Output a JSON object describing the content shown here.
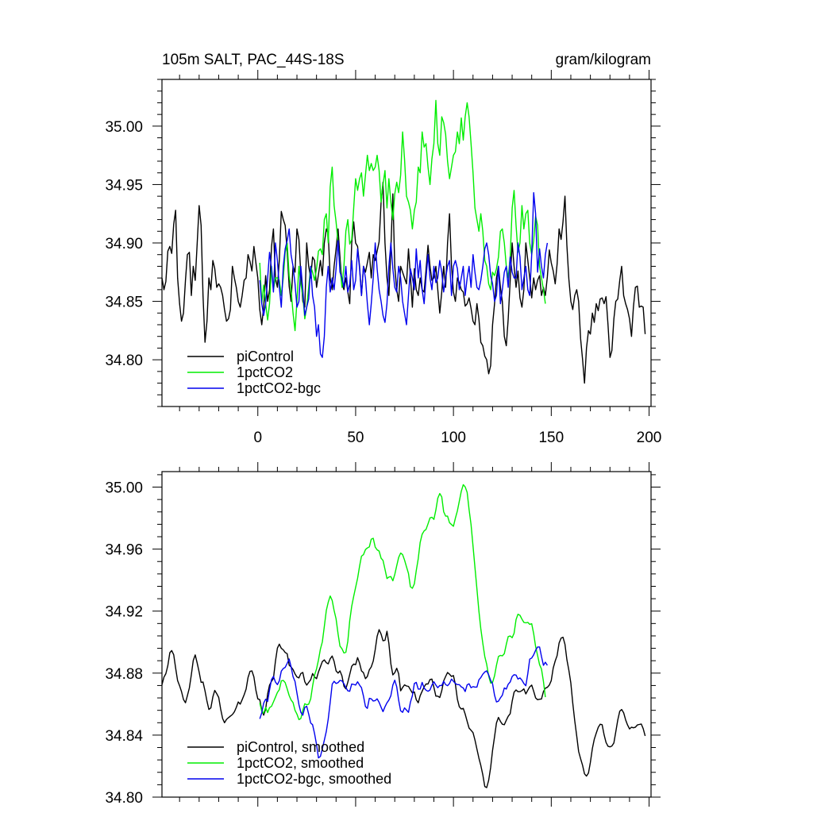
{
  "figure": {
    "title_left": "105m SALT, PAC_44S-18S",
    "title_right": "gram/kilogram"
  },
  "chart_data": [
    {
      "type": "line",
      "title": "105m SALT, PAC_44S-18S",
      "units": "gram/kilogram",
      "xlim": [
        -49,
        201
      ],
      "ylim": [
        34.76,
        35.04
      ],
      "xticks": [
        0,
        50,
        100,
        150,
        200
      ],
      "xtick_labels": [
        "0",
        "50",
        "100",
        "150",
        "200"
      ],
      "yticks": [
        34.8,
        34.85,
        34.9,
        34.95,
        35.0
      ],
      "ytick_labels": [
        "34.80",
        "34.85",
        "34.90",
        "34.95",
        "35.00"
      ],
      "grid": false,
      "legend": "bottom-left",
      "series": [
        {
          "name": "piControl",
          "color": "#000000",
          "x0": -49,
          "values": [
            34.87,
            34.86,
            34.867,
            34.893,
            34.897,
            34.891,
            34.916,
            34.928,
            34.87,
            34.848,
            34.833,
            34.84,
            34.868,
            34.89,
            34.892,
            34.855,
            34.88,
            34.868,
            34.9,
            34.932,
            34.915,
            34.855,
            34.815,
            34.833,
            34.87,
            34.86,
            34.885,
            34.878,
            34.862,
            34.865,
            34.862,
            34.855,
            34.843,
            34.833,
            34.835,
            34.843,
            34.88,
            34.87,
            34.862,
            34.85,
            34.845,
            34.855,
            34.868,
            34.87,
            34.89,
            34.884,
            34.876,
            34.897,
            34.883,
            34.87,
            34.843,
            34.83,
            34.845,
            34.872,
            34.85,
            34.86,
            34.897,
            34.912,
            34.87,
            34.862,
            34.885,
            34.927,
            34.92,
            34.915,
            34.893,
            34.863,
            34.85,
            34.88,
            34.875,
            34.912,
            34.903,
            34.873,
            34.85,
            34.845,
            34.9,
            34.88,
            34.87,
            34.888,
            34.885,
            34.862,
            34.873,
            34.885,
            34.872,
            34.9,
            34.912,
            34.908,
            34.87,
            34.86,
            34.88,
            34.895,
            34.912,
            34.888,
            34.865,
            34.86,
            34.87,
            34.858,
            34.848,
            34.9,
            34.918,
            34.9,
            34.897,
            34.88,
            34.855,
            34.88,
            34.875,
            34.883,
            34.892,
            34.87,
            34.89,
            34.885,
            34.893,
            34.901,
            34.935,
            34.952,
            34.9,
            34.87,
            34.855,
            34.895,
            34.942,
            34.88,
            34.86,
            34.85,
            34.88,
            34.875,
            34.87,
            34.865,
            34.895,
            34.872,
            34.845,
            34.878,
            34.86,
            34.855,
            34.87,
            34.86,
            34.858,
            34.877,
            34.898,
            34.88,
            34.868,
            34.87,
            34.88,
            34.86,
            34.84,
            34.858,
            34.88,
            34.862,
            34.9,
            34.925,
            34.88,
            34.858,
            34.85,
            34.87,
            34.866,
            34.86,
            34.858,
            34.846,
            34.848,
            34.853,
            34.844,
            34.833,
            34.83,
            34.848,
            34.835,
            34.815,
            34.812,
            34.803,
            34.8,
            34.788,
            34.795,
            34.83,
            34.848,
            34.87,
            34.88,
            34.862,
            34.85,
            34.82,
            34.812,
            34.835,
            34.868,
            34.9,
            34.88,
            34.862,
            34.876,
            34.853,
            34.845,
            34.86,
            34.9,
            34.885,
            34.87,
            34.853,
            34.87,
            34.86,
            34.868,
            34.872,
            34.855,
            34.862,
            34.855,
            34.871,
            34.894,
            34.883,
            34.876,
            34.865,
            34.882,
            34.912,
            34.903,
            34.918,
            34.94,
            34.898,
            34.869,
            34.85,
            34.843,
            34.855,
            34.86,
            34.85,
            34.818,
            34.8,
            34.78,
            34.81,
            34.825,
            34.822,
            34.84,
            34.832,
            34.848,
            34.842,
            34.852,
            34.853,
            34.848,
            34.854,
            34.83,
            34.802,
            34.808,
            34.835,
            34.85,
            34.852,
            34.868,
            34.88,
            34.855,
            34.848,
            34.843,
            34.835,
            34.82,
            34.845,
            34.862,
            34.863,
            34.845,
            34.846,
            34.845,
            34.822
          ]
        },
        {
          "name": "1pctCO2",
          "color": "#00ee00",
          "x0": 1,
          "values": [
            34.883,
            34.848,
            34.864,
            34.848,
            34.834,
            34.848,
            34.88,
            34.86,
            34.87,
            34.87,
            34.868,
            34.855,
            34.87,
            34.892,
            34.9,
            34.872,
            34.86,
            34.84,
            34.825,
            34.85,
            34.88,
            34.865,
            34.855,
            34.835,
            34.845,
            34.862,
            34.88,
            34.875,
            34.868,
            34.878,
            34.893,
            34.895,
            34.89,
            34.92,
            34.925,
            34.9,
            34.948,
            34.965,
            34.932,
            34.918,
            34.9,
            34.88,
            34.862,
            34.88,
            34.91,
            34.92,
            34.899,
            34.903,
            34.93,
            34.955,
            34.945,
            34.955,
            34.96,
            34.94,
            34.958,
            34.975,
            34.962,
            34.968,
            34.962,
            34.965,
            34.975,
            34.962,
            34.935,
            34.95,
            34.962,
            34.93,
            34.955,
            34.935,
            34.92,
            34.942,
            34.952,
            34.943,
            34.958,
            34.995,
            34.972,
            34.94,
            34.935,
            34.928,
            34.912,
            34.928,
            34.935,
            34.965,
            34.96,
            34.995,
            34.982,
            34.985,
            34.965,
            34.95,
            34.972,
            34.985,
            35.022,
            34.985,
            34.975,
            35.008,
            35.003,
            34.993,
            34.97,
            34.955,
            34.965,
            34.975,
            34.978,
            34.995,
            34.985,
            35.007,
            34.988,
            35.008,
            35.02,
            35.008,
            34.985,
            34.96,
            34.93,
            34.92,
            34.91,
            34.925,
            34.91,
            34.885,
            34.88,
            34.865,
            34.86,
            34.875,
            34.872,
            34.878,
            34.888,
            34.91,
            34.912,
            34.9,
            34.88,
            34.87,
            34.888,
            34.93,
            34.945,
            34.915,
            34.892,
            34.9,
            34.932,
            34.912,
            34.925,
            34.928,
            34.9,
            34.89,
            34.902,
            34.923,
            34.915,
            34.88,
            34.87,
            34.86,
            34.848
          ]
        },
        {
          "name": "1pctCO2-bgc",
          "color": "#0000ee",
          "x0": 1,
          "values": [
            34.868,
            34.848,
            34.838,
            34.848,
            34.87,
            34.892,
            34.878,
            34.858,
            34.9,
            34.885,
            34.862,
            34.845,
            34.88,
            34.895,
            34.902,
            34.912,
            34.89,
            34.88,
            34.865,
            34.845,
            34.85,
            34.88,
            34.86,
            34.838,
            34.845,
            34.852,
            34.88,
            34.855,
            34.845,
            34.82,
            34.83,
            34.805,
            34.802,
            34.82,
            34.862,
            34.88,
            34.858,
            34.87,
            34.86,
            34.878,
            34.902,
            34.875,
            34.87,
            34.862,
            34.88,
            34.858,
            34.865,
            34.885,
            34.86,
            34.868,
            34.895,
            34.878,
            34.855,
            34.88,
            34.87,
            34.848,
            34.83,
            34.848,
            34.87,
            34.9,
            34.878,
            34.86,
            34.85,
            34.838,
            34.832,
            34.848,
            34.88,
            34.9,
            34.878,
            34.862,
            34.858,
            34.88,
            34.87,
            34.85,
            34.84,
            34.83,
            34.855,
            34.878,
            34.87,
            34.86,
            34.895,
            34.87,
            34.885,
            34.86,
            34.848,
            34.87,
            34.89,
            34.87,
            34.86,
            34.88,
            34.866,
            34.87,
            34.885,
            34.875,
            34.858,
            34.87,
            34.88,
            34.885,
            34.855,
            34.88,
            34.885,
            34.878,
            34.86,
            34.87,
            34.88,
            34.855,
            34.87,
            34.88,
            34.862,
            34.89,
            34.875,
            34.862,
            34.86,
            34.868,
            34.88,
            34.895,
            34.9,
            34.89,
            34.872,
            34.865,
            34.85,
            34.855,
            34.88,
            34.848,
            34.86,
            34.875,
            34.88,
            34.862,
            34.888,
            34.875,
            34.87,
            34.87,
            34.9,
            34.888,
            34.86,
            34.87,
            34.88,
            34.86,
            34.855,
            34.89,
            34.943,
            34.925,
            34.875,
            34.895,
            34.88,
            34.87,
            34.89,
            34.9
          ]
        }
      ]
    },
    {
      "type": "line",
      "xlim": [
        -49,
        201
      ],
      "ylim": [
        34.8,
        35.01
      ],
      "xticks": [
        0,
        50,
        100,
        150,
        200
      ],
      "yticks": [
        34.8,
        34.84,
        34.88,
        34.92,
        34.96,
        35.0
      ],
      "ytick_labels": [
        "34.80",
        "34.84",
        "34.88",
        "34.92",
        "34.96",
        "35.00"
      ],
      "grid": false,
      "legend": "bottom-left",
      "series": [
        {
          "name": "piControl, smoothed",
          "color": "#000000",
          "smooth_of": 0
        },
        {
          "name": "1pctCO2, smoothed",
          "color": "#00ee00",
          "smooth_of": 1
        },
        {
          "name": "1pctCO2-bgc, smoothed",
          "color": "#0000ee",
          "smooth_of": 2
        }
      ]
    }
  ]
}
